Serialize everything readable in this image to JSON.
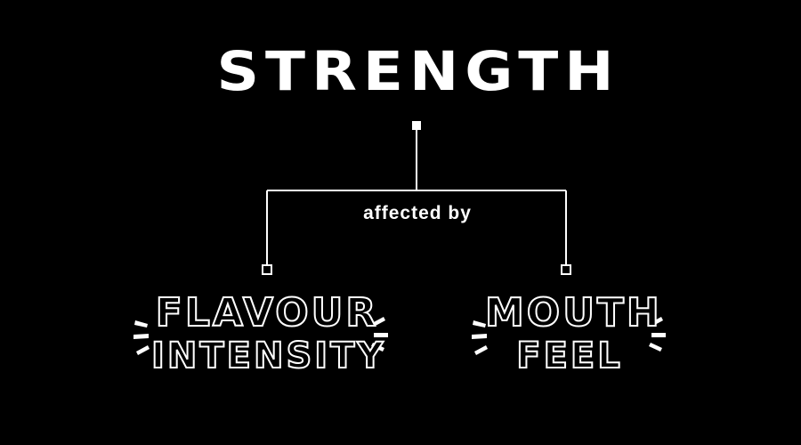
{
  "title": "STRENGTH",
  "connector_label": "affected by",
  "nodes": [
    {
      "line1": "FLAVOUR",
      "line2": "INTENSITY"
    },
    {
      "line1": "MOUTH",
      "line2": "FEEL"
    }
  ],
  "colors": {
    "background": "#000000",
    "foreground": "#ffffff"
  }
}
